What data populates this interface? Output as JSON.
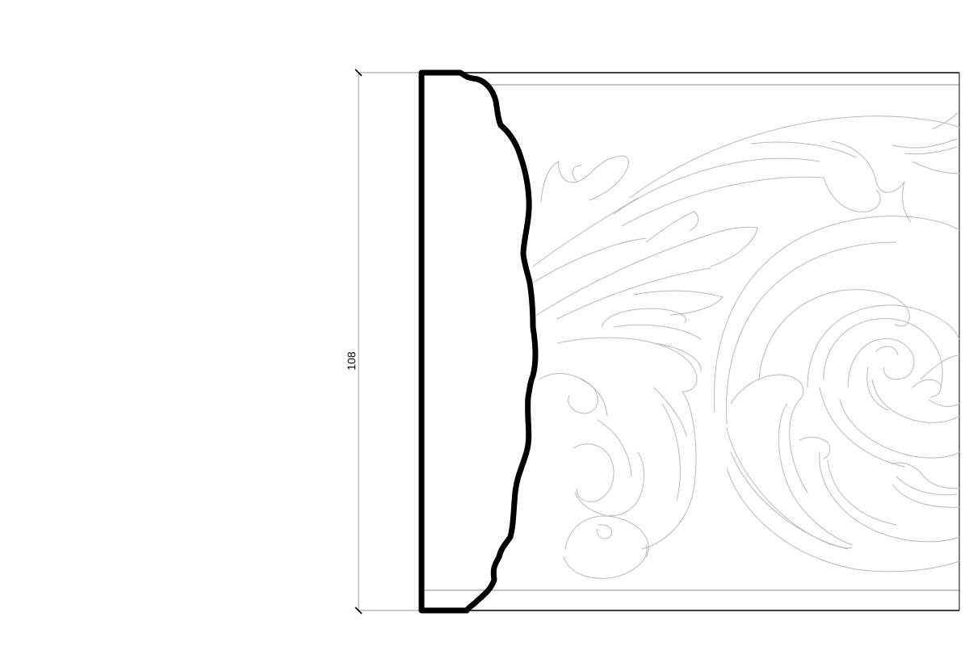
{
  "dimension": {
    "value": "108"
  },
  "colors": {
    "background": "#ffffff",
    "profile_stroke": "#000000",
    "ornament_stroke": "#b8b8b8",
    "dimension_stroke": "#9a9a9a"
  }
}
